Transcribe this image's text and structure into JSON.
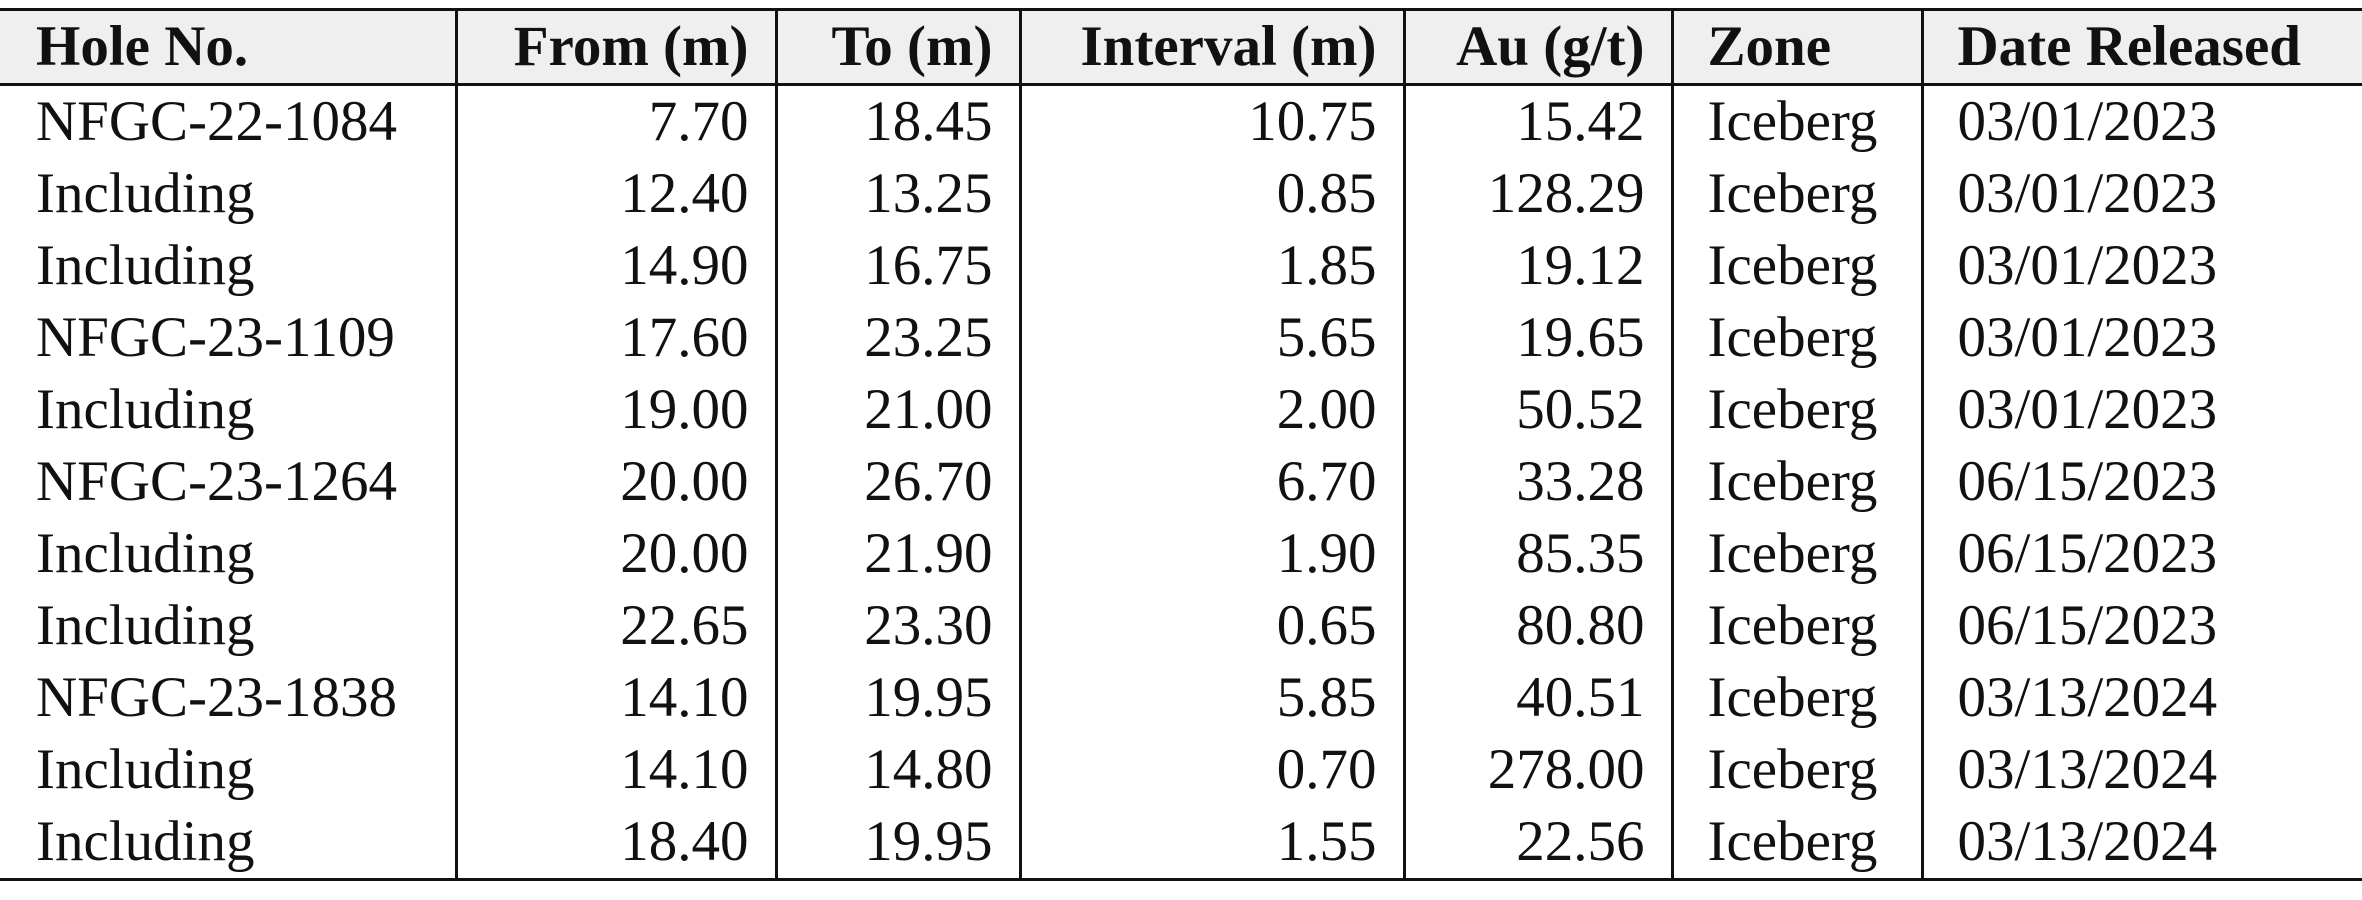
{
  "table": {
    "header": [
      "Hole No.",
      "From (m)",
      "To (m)",
      "Interval (m)",
      "Au (g/t)",
      "Zone",
      "Date Released"
    ],
    "rows": [
      [
        "NFGC-22-1084",
        "7.70",
        "18.45",
        "10.75",
        "15.42",
        "Iceberg",
        "03/01/2023"
      ],
      [
        "Including",
        "12.40",
        "13.25",
        "0.85",
        "128.29",
        "Iceberg",
        "03/01/2023"
      ],
      [
        "Including",
        "14.90",
        "16.75",
        "1.85",
        "19.12",
        "Iceberg",
        "03/01/2023"
      ],
      [
        "NFGC-23-1109",
        "17.60",
        "23.25",
        "5.65",
        "19.65",
        "Iceberg",
        "03/01/2023"
      ],
      [
        "Including",
        "19.00",
        "21.00",
        "2.00",
        "50.52",
        "Iceberg",
        "03/01/2023"
      ],
      [
        "NFGC-23-1264",
        "20.00",
        "26.70",
        "6.70",
        "33.28",
        "Iceberg",
        "06/15/2023"
      ],
      [
        "Including",
        "20.00",
        "21.90",
        "1.90",
        "85.35",
        "Iceberg",
        "06/15/2023"
      ],
      [
        "Including",
        "22.65",
        "23.30",
        "0.65",
        "80.80",
        "Iceberg",
        "06/15/2023"
      ],
      [
        "NFGC-23-1838",
        "14.10",
        "19.95",
        "5.85",
        "40.51",
        "Iceberg",
        "03/13/2024"
      ],
      [
        "Including",
        "14.10",
        "14.80",
        "0.70",
        "278.00",
        "Iceberg",
        "03/13/2024"
      ],
      [
        "Including",
        "18.40",
        "19.95",
        "1.55",
        "22.56",
        "Iceberg",
        "03/13/2024"
      ]
    ]
  }
}
